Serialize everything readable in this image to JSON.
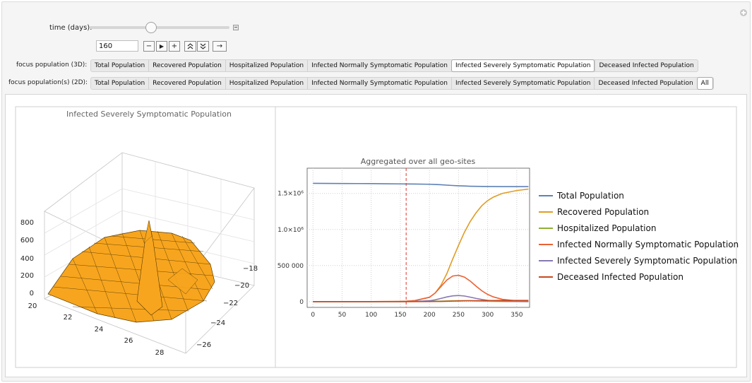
{
  "controls": {
    "time_label": "time (days):",
    "time_value": "160",
    "time_slider_fraction": 0.44,
    "buttons": {
      "step_back": "−",
      "play": "▶",
      "step_forward": "+",
      "faster": "⌃",
      "slower": "⌄",
      "direction": "→"
    },
    "focus3d_label": "focus population (3D):",
    "focus2d_label": "focus population(s) (2D):",
    "focus3d_options": [
      "Total Population",
      "Recovered Population",
      "Hospitalized Population",
      "Infected Normally Symptomatic Population",
      "Infected Severely Symptomatic Population",
      "Deceased Infected Population"
    ],
    "focus3d_selected": "Infected Severely Symptomatic Population",
    "focus2d_options": [
      "Total Population",
      "Recovered Population",
      "Hospitalized Population",
      "Infected Normally Symptomatic Population",
      "Infected Severely Symptomatic Population",
      "Deceased Infected Population",
      "All"
    ],
    "focus2d_selected": "All"
  },
  "plot3d": {
    "title": "Infected Severely Symptomatic Population",
    "z_ticks": [
      "0",
      "200",
      "400",
      "600",
      "800"
    ],
    "x_ticks": [
      "20",
      "22",
      "24",
      "26",
      "28"
    ],
    "y_ticks": [
      "−18",
      "−20",
      "−22",
      "−24",
      "−26"
    ],
    "surface_color": "#f7a51e"
  },
  "chart_data": {
    "type": "line",
    "title": "Aggregated over all geo-sites",
    "x_ticks": [
      "0",
      "50",
      "100",
      "150",
      "200",
      "250",
      "300",
      "350"
    ],
    "y_ticks": [
      "0",
      "500 000",
      "1.0×10⁶",
      "1.5×10⁶"
    ],
    "xlim": [
      -10,
      372
    ],
    "ylim": [
      -80000,
      1850000
    ],
    "current_time_marker": 160,
    "marker_color": "#e0342b",
    "x": [
      0,
      25,
      50,
      75,
      100,
      125,
      150,
      160,
      175,
      200,
      210,
      220,
      230,
      240,
      250,
      260,
      270,
      280,
      290,
      300,
      310,
      325,
      350,
      370
    ],
    "series": [
      {
        "name": "Total Population",
        "color": "#5e81b5",
        "values": [
          1640000,
          1639000,
          1638000,
          1637000,
          1636000,
          1634000,
          1632000,
          1631000,
          1630000,
          1627000,
          1624000,
          1620000,
          1615000,
          1610000,
          1606000,
          1603000,
          1600000,
          1598000,
          1597000,
          1596000,
          1596000,
          1595000,
          1595000,
          1595000
        ]
      },
      {
        "name": "Recovered Population",
        "color": "#e19c24",
        "values": [
          0,
          0,
          0,
          0,
          0,
          1000,
          3000,
          6000,
          15000,
          60000,
          120000,
          230000,
          390000,
          590000,
          780000,
          960000,
          1110000,
          1230000,
          1330000,
          1400000,
          1450000,
          1500000,
          1540000,
          1560000
        ]
      },
      {
        "name": "Hospitalized Population",
        "color": "#8fb032",
        "values": [
          0,
          0,
          0,
          0,
          0,
          0,
          0,
          0,
          1000,
          3000,
          5000,
          7000,
          9000,
          11000,
          12000,
          12000,
          11000,
          9000,
          7000,
          5000,
          4000,
          2000,
          1000,
          500
        ]
      },
      {
        "name": "Infected Normally Symptomatic Population",
        "color": "#eb6235",
        "values": [
          0,
          0,
          0,
          0,
          0,
          1000,
          3000,
          5000,
          14000,
          60000,
          120000,
          210000,
          300000,
          355000,
          365000,
          340000,
          285000,
          215000,
          150000,
          100000,
          65000,
          32000,
          10000,
          4000
        ]
      },
      {
        "name": "Infected Severely Symptomatic Population",
        "color": "#8778b3",
        "values": [
          0,
          0,
          0,
          0,
          0,
          0,
          0,
          1000,
          3000,
          12000,
          25000,
          45000,
          65000,
          80000,
          85000,
          78000,
          62000,
          45000,
          30000,
          18000,
          11000,
          5000,
          1500,
          500
        ]
      },
      {
        "name": "Deceased Infected Population",
        "color": "#c74a1e",
        "values": [
          0,
          0,
          0,
          0,
          0,
          0,
          0,
          0,
          0,
          1000,
          2000,
          3000,
          5000,
          7000,
          9000,
          11000,
          12000,
          13000,
          14000,
          15000,
          15000,
          16000,
          16000,
          16000
        ]
      }
    ]
  }
}
